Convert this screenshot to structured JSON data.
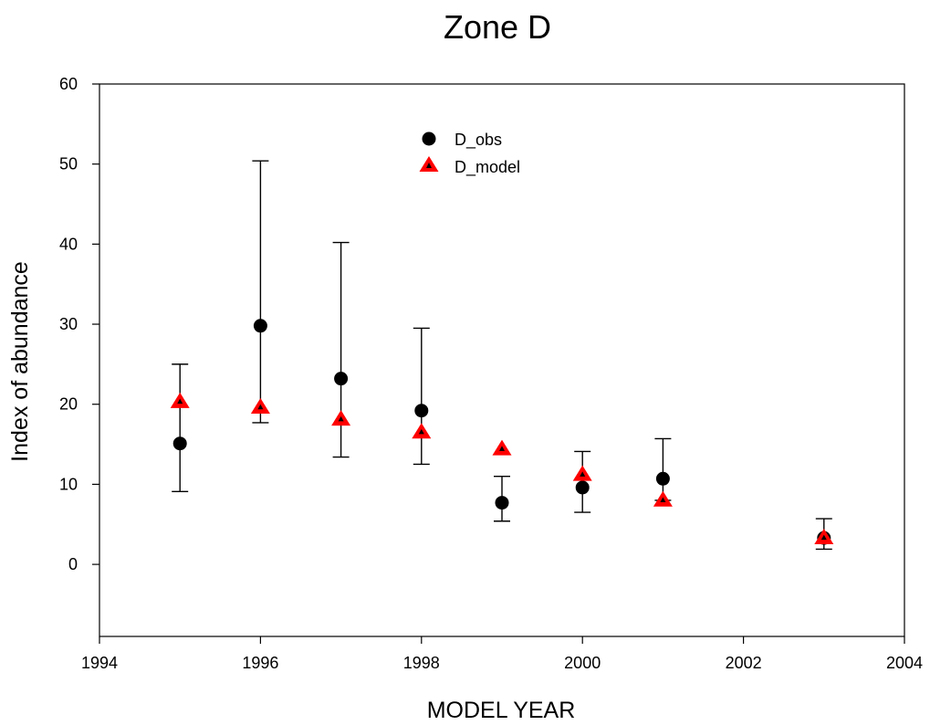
{
  "chart_data": {
    "type": "scatter",
    "title": "Zone D",
    "xlabel": "MODEL YEAR",
    "ylabel": "Index of abundance",
    "xlim": [
      1994,
      2004
    ],
    "ylim": [
      -9,
      60
    ],
    "xticks": [
      "1994",
      "1996",
      "1998",
      "2000",
      "2002",
      "2004"
    ],
    "xtick_values": [
      1994,
      1996,
      1998,
      2000,
      2002,
      2004
    ],
    "yticks": [
      "0",
      "10",
      "20",
      "30",
      "40",
      "50",
      "60"
    ],
    "ytick_values": [
      0,
      10,
      20,
      30,
      40,
      50,
      60
    ],
    "grid": false,
    "legend_position": "top-center",
    "series": [
      {
        "name": "D_obs",
        "marker": "circle",
        "color": "#000000",
        "points": [
          {
            "x": 1995,
            "y": 15.1,
            "lower": 9.1,
            "upper": 25.0
          },
          {
            "x": 1996,
            "y": 29.8,
            "lower": 17.7,
            "upper": 50.4
          },
          {
            "x": 1997,
            "y": 23.2,
            "lower": 13.4,
            "upper": 40.2
          },
          {
            "x": 1998,
            "y": 19.2,
            "lower": 12.5,
            "upper": 29.5
          },
          {
            "x": 1999,
            "y": 7.7,
            "lower": 5.4,
            "upper": 11.0
          },
          {
            "x": 2000,
            "y": 9.6,
            "lower": 6.5,
            "upper": 14.1
          },
          {
            "x": 2001,
            "y": 10.7,
            "lower": 8.0,
            "upper": 15.7
          },
          {
            "x": 2003,
            "y": 3.3,
            "lower": 1.9,
            "upper": 5.7
          }
        ]
      },
      {
        "name": "D_model",
        "marker": "triangle",
        "color": "#ff0000",
        "points": [
          {
            "x": 1995,
            "y": 20.3
          },
          {
            "x": 1996,
            "y": 19.6
          },
          {
            "x": 1997,
            "y": 18.1
          },
          {
            "x": 1998,
            "y": 16.5
          },
          {
            "x": 1999,
            "y": 14.4
          },
          {
            "x": 2000,
            "y": 11.2
          },
          {
            "x": 2001,
            "y": 8.0
          },
          {
            "x": 2003,
            "y": 3.3
          }
        ]
      }
    ]
  }
}
